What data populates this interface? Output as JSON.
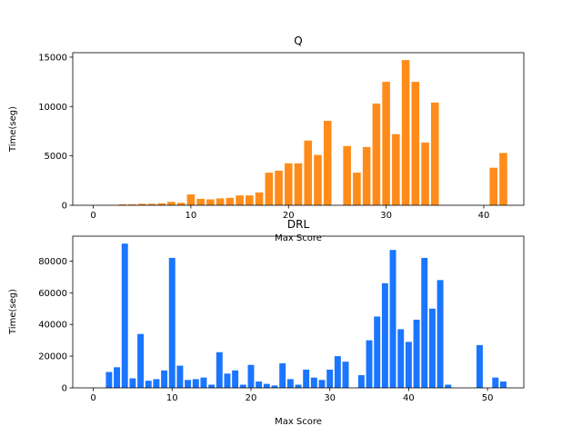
{
  "chart_data": [
    {
      "type": "bar",
      "title": "Q",
      "xlabel": "Max Score",
      "ylabel": "Time(seg)",
      "bar_color": "#ff8c1a",
      "xlim": [
        -2.1,
        44.1
      ],
      "ylim": [
        0,
        15450
      ],
      "xticks": [
        0,
        10,
        20,
        30,
        40
      ],
      "yticks": [
        0,
        5000,
        10000,
        15000
      ],
      "x": [
        3,
        4,
        5,
        6,
        7,
        8,
        9,
        10,
        11,
        12,
        13,
        14,
        15,
        16,
        17,
        18,
        19,
        20,
        21,
        22,
        23,
        24,
        26,
        27,
        28,
        29,
        30,
        31,
        32,
        33,
        34,
        35,
        41,
        42
      ],
      "values": [
        100,
        100,
        150,
        150,
        200,
        350,
        250,
        1100,
        650,
        600,
        700,
        750,
        1000,
        1000,
        1300,
        3300,
        3500,
        4250,
        4250,
        6550,
        5100,
        8550,
        6000,
        3300,
        5900,
        10300,
        12500,
        7200,
        14700,
        12500,
        6350,
        10400,
        3800,
        5300
      ]
    },
    {
      "type": "bar",
      "title": "DRL",
      "xlabel": "Max Score",
      "ylabel": "Time(seg)",
      "bar_color": "#1a75ff",
      "xlim": [
        -2.6,
        54.6
      ],
      "ylim": [
        0,
        95700
      ],
      "xticks": [
        0,
        10,
        20,
        30,
        40,
        50
      ],
      "yticks": [
        0,
        20000,
        40000,
        60000,
        80000
      ],
      "x": [
        2,
        3,
        4,
        5,
        6,
        7,
        8,
        9,
        10,
        11,
        12,
        13,
        14,
        15,
        16,
        17,
        18,
        19,
        20,
        21,
        22,
        23,
        24,
        25,
        26,
        27,
        28,
        29,
        30,
        31,
        32,
        34,
        35,
        36,
        37,
        38,
        39,
        40,
        41,
        42,
        43,
        44,
        45,
        49,
        51,
        52
      ],
      "values": [
        10000,
        13000,
        91000,
        6000,
        34000,
        4500,
        5500,
        11000,
        82000,
        14000,
        5000,
        5500,
        6500,
        2000,
        22500,
        9000,
        11000,
        2000,
        14500,
        4000,
        2500,
        1500,
        15500,
        5500,
        2000,
        11500,
        6500,
        5000,
        11500,
        20000,
        16500,
        8000,
        30000,
        45000,
        66000,
        87000,
        37000,
        29000,
        43000,
        82000,
        50000,
        68000,
        2000,
        27000,
        6500,
        4000
      ]
    }
  ]
}
